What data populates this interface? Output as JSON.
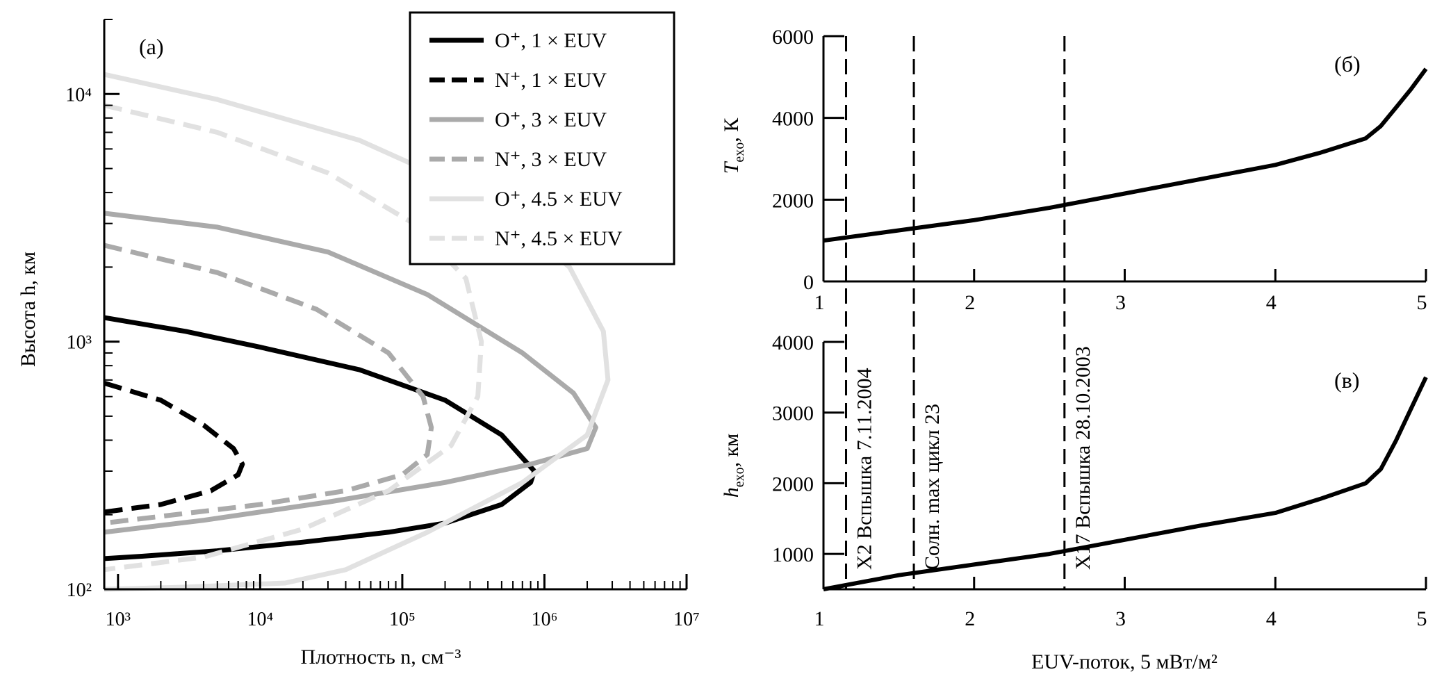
{
  "chart_data": [
    {
      "type": "line",
      "panel_label": "(a)",
      "xlabel": "Плотность n, см⁻³",
      "ylabel": "Высота h, км",
      "xscale": "log",
      "yscale": "log",
      "xlim": [
        800,
        10000000
      ],
      "ylim": [
        100,
        20000
      ],
      "x_ticks": [
        "10³",
        "10⁴",
        "10⁵",
        "10⁶",
        "10⁷"
      ],
      "y_ticks": [
        "10²",
        "10³",
        "10⁴"
      ],
      "grid": false,
      "legend_position": "top-right",
      "series": [
        {
          "name": "O⁺, 1 × EUV",
          "color": "#000000",
          "dash": "solid",
          "x": [
            800,
            3000,
            10000,
            50000,
            200000,
            500000,
            850000,
            800000,
            500000,
            200000,
            80000,
            20000,
            5000,
            1500,
            800
          ],
          "y": [
            1250,
            1100,
            950,
            770,
            580,
            420,
            300,
            270,
            220,
            185,
            170,
            155,
            143,
            136,
            133
          ]
        },
        {
          "name": "N⁺, 1 × EUV",
          "color": "#000000",
          "dash": "dashed",
          "x": [
            800,
            2000,
            4000,
            6500,
            7500,
            7000,
            4500,
            2000,
            800
          ],
          "y": [
            680,
            580,
            460,
            370,
            320,
            290,
            250,
            220,
            205
          ]
        },
        {
          "name": "O⁺, 3 × EUV",
          "color": "#aaaaaa",
          "dash": "solid",
          "x": [
            800,
            5000,
            30000,
            150000,
            700000,
            1600000,
            2300000,
            2000000,
            800000,
            200000,
            30000,
            4000,
            800
          ],
          "y": [
            3300,
            2900,
            2300,
            1550,
            900,
            620,
            450,
            370,
            320,
            270,
            225,
            190,
            170
          ]
        },
        {
          "name": "N⁺, 3 × EUV",
          "color": "#aaaaaa",
          "dash": "dashed",
          "x": [
            800,
            5000,
            25000,
            80000,
            140000,
            160000,
            150000,
            100000,
            40000,
            10000,
            800
          ],
          "y": [
            2450,
            1900,
            1350,
            900,
            600,
            450,
            350,
            290,
            250,
            220,
            185
          ]
        },
        {
          "name": "O⁺, 4.5 × EUV",
          "color": "#e1e1e1",
          "dash": "solid",
          "x": [
            800,
            5000,
            50000,
            400000,
            1500000,
            2600000,
            2800000,
            2000000,
            700000,
            150000,
            40000,
            15000,
            3000,
            800
          ],
          "y": [
            12000,
            9500,
            6500,
            3800,
            2000,
            1100,
            700,
            420,
            270,
            170,
            120,
            106,
            102,
            100
          ]
        },
        {
          "name": "N⁺, 4.5 × EUV",
          "color": "#e1e1e1",
          "dash": "dashed",
          "x": [
            800,
            5000,
            30000,
            120000,
            280000,
            360000,
            340000,
            220000,
            80000,
            20000,
            4000,
            800
          ],
          "y": [
            9000,
            7000,
            4800,
            3000,
            1800,
            1000,
            600,
            380,
            250,
            175,
            135,
            120
          ]
        }
      ]
    },
    {
      "type": "line",
      "panel_label": "(б)",
      "ylabel": "T_exo, К",
      "xlim": [
        1,
        5
      ],
      "ylim": [
        0,
        6000
      ],
      "x_ticks": [
        "1",
        "2",
        "3",
        "4",
        "5"
      ],
      "y_ticks": [
        "0",
        "2000",
        "4000",
        "6000"
      ],
      "series": [
        {
          "x": [
            1.0,
            1.5,
            2.0,
            2.5,
            3.0,
            3.5,
            4.0,
            4.3,
            4.6,
            4.7,
            4.8,
            4.9,
            5.0
          ],
          "y": [
            1000,
            1250,
            1500,
            1800,
            2150,
            2500,
            2850,
            3150,
            3500,
            3800,
            4250,
            4700,
            5200
          ]
        }
      ]
    },
    {
      "type": "line",
      "panel_label": "(в)",
      "xlabel": "EUV-поток, 5 мВт/м²",
      "ylabel": "h_exo, км",
      "xlim": [
        1,
        5
      ],
      "ylim": [
        500,
        4000
      ],
      "x_ticks": [
        "1",
        "2",
        "3",
        "4",
        "5"
      ],
      "y_ticks": [
        "1000",
        "2000",
        "3000",
        "4000"
      ],
      "series": [
        {
          "x": [
            1.0,
            1.5,
            2.0,
            2.5,
            3.0,
            3.5,
            4.0,
            4.3,
            4.6,
            4.7,
            4.8,
            4.9,
            5.0
          ],
          "y": [
            500,
            700,
            850,
            1000,
            1200,
            1400,
            1580,
            1780,
            2000,
            2200,
            2600,
            3050,
            3500
          ]
        }
      ]
    }
  ],
  "vlines": [
    {
      "x": 1.15,
      "label": "X2 Вспышка 7.11.2004"
    },
    {
      "x": 1.6,
      "label": "Солн. max цикл 23"
    },
    {
      "x": 2.6,
      "label": "X17 Вспышка 28.10.2003"
    }
  ]
}
